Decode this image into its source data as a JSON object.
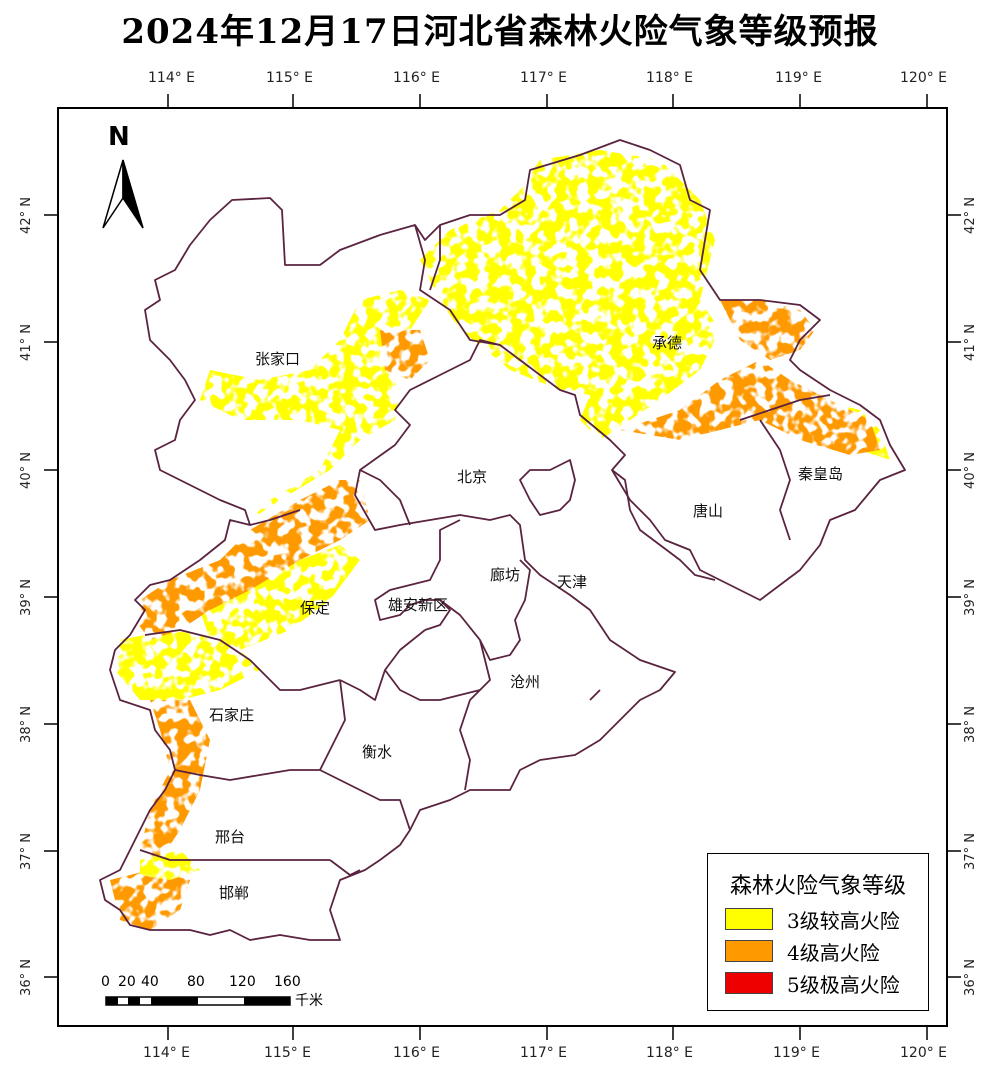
{
  "title": "2024年12月17日河北省森林火险气象等级预报",
  "lon_labels": [
    "114° E",
    "115° E",
    "116° E",
    "117° E",
    "118° E",
    "119° E",
    "120° E"
  ],
  "lat_labels": [
    "42° N",
    "41° N",
    "40° N",
    "39° N",
    "38° N",
    "37° N",
    "36° N"
  ],
  "north_label": "N",
  "cities": {
    "zhangjiakou": "张家口",
    "chengde": "承德",
    "beijing": "北京",
    "qinhuangdao": "秦皇岛",
    "tangshan": "唐山",
    "baoding": "保定",
    "xiongan": "雄安新区",
    "langfang": "廊坊",
    "tianjin": "天津",
    "cangzhou": "沧州",
    "shijiazhuang": "石家庄",
    "hengshui": "衡水",
    "xingtai": "邢台",
    "handan": "邯郸"
  },
  "scale": {
    "ticks": [
      "0",
      "20",
      "40",
      "80",
      "120",
      "160"
    ],
    "unit": "千米"
  },
  "legend": {
    "title": "森林火险气象等级",
    "items": [
      {
        "label": "3级较高火险",
        "color": "#ffff00"
      },
      {
        "label": "4级高火险",
        "color": "#ff9900"
      },
      {
        "label": "5级极高火险",
        "color": "#ee0000"
      }
    ]
  },
  "colors": {
    "border": "#5a2340",
    "level3": "#ffff00",
    "level4": "#ff9900",
    "level5": "#ee0000"
  }
}
